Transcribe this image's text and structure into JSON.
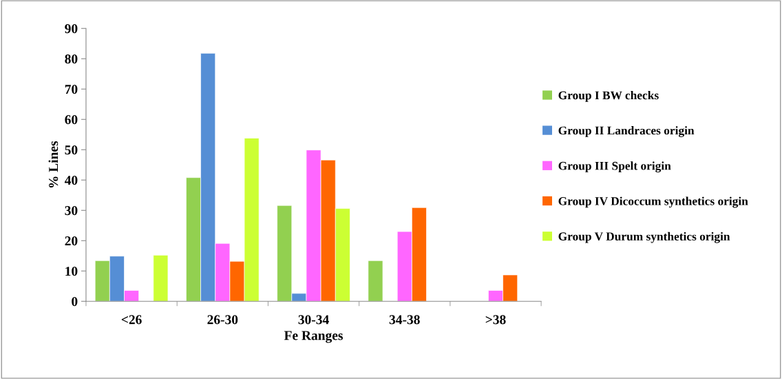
{
  "chart_data": {
    "type": "bar",
    "xlabel": "Fe Ranges",
    "ylabel": "% Lines",
    "categories": [
      "<26",
      "26-30",
      "30-34",
      "34-38",
      ">38"
    ],
    "series": [
      {
        "name": "Group I BW checks",
        "color": "#92d050",
        "values": [
          13.4,
          40.8,
          31.6,
          13.4,
          null
        ]
      },
      {
        "name": "Group II Landraces origin",
        "color": "#558ed5",
        "values": [
          14.9,
          81.8,
          2.6,
          null,
          null
        ]
      },
      {
        "name": "Group III Spelt origin",
        "color": "#ff66ff",
        "values": [
          3.6,
          19.1,
          49.9,
          23.0,
          3.6
        ]
      },
      {
        "name": "Group IV Dicoccum synthetics origin",
        "color": "#ff6600",
        "values": [
          null,
          13.2,
          46.6,
          30.9,
          8.7
        ]
      },
      {
        "name": "Group V Durum synthetics origin",
        "color": "#ccff33",
        "values": [
          15.2,
          53.8,
          30.6,
          null,
          null
        ]
      }
    ],
    "ylim": [
      0,
      90
    ],
    "yticks": [
      0,
      10,
      20,
      30,
      40,
      50,
      60,
      70,
      80,
      90
    ],
    "grid": false,
    "legend": "right"
  }
}
